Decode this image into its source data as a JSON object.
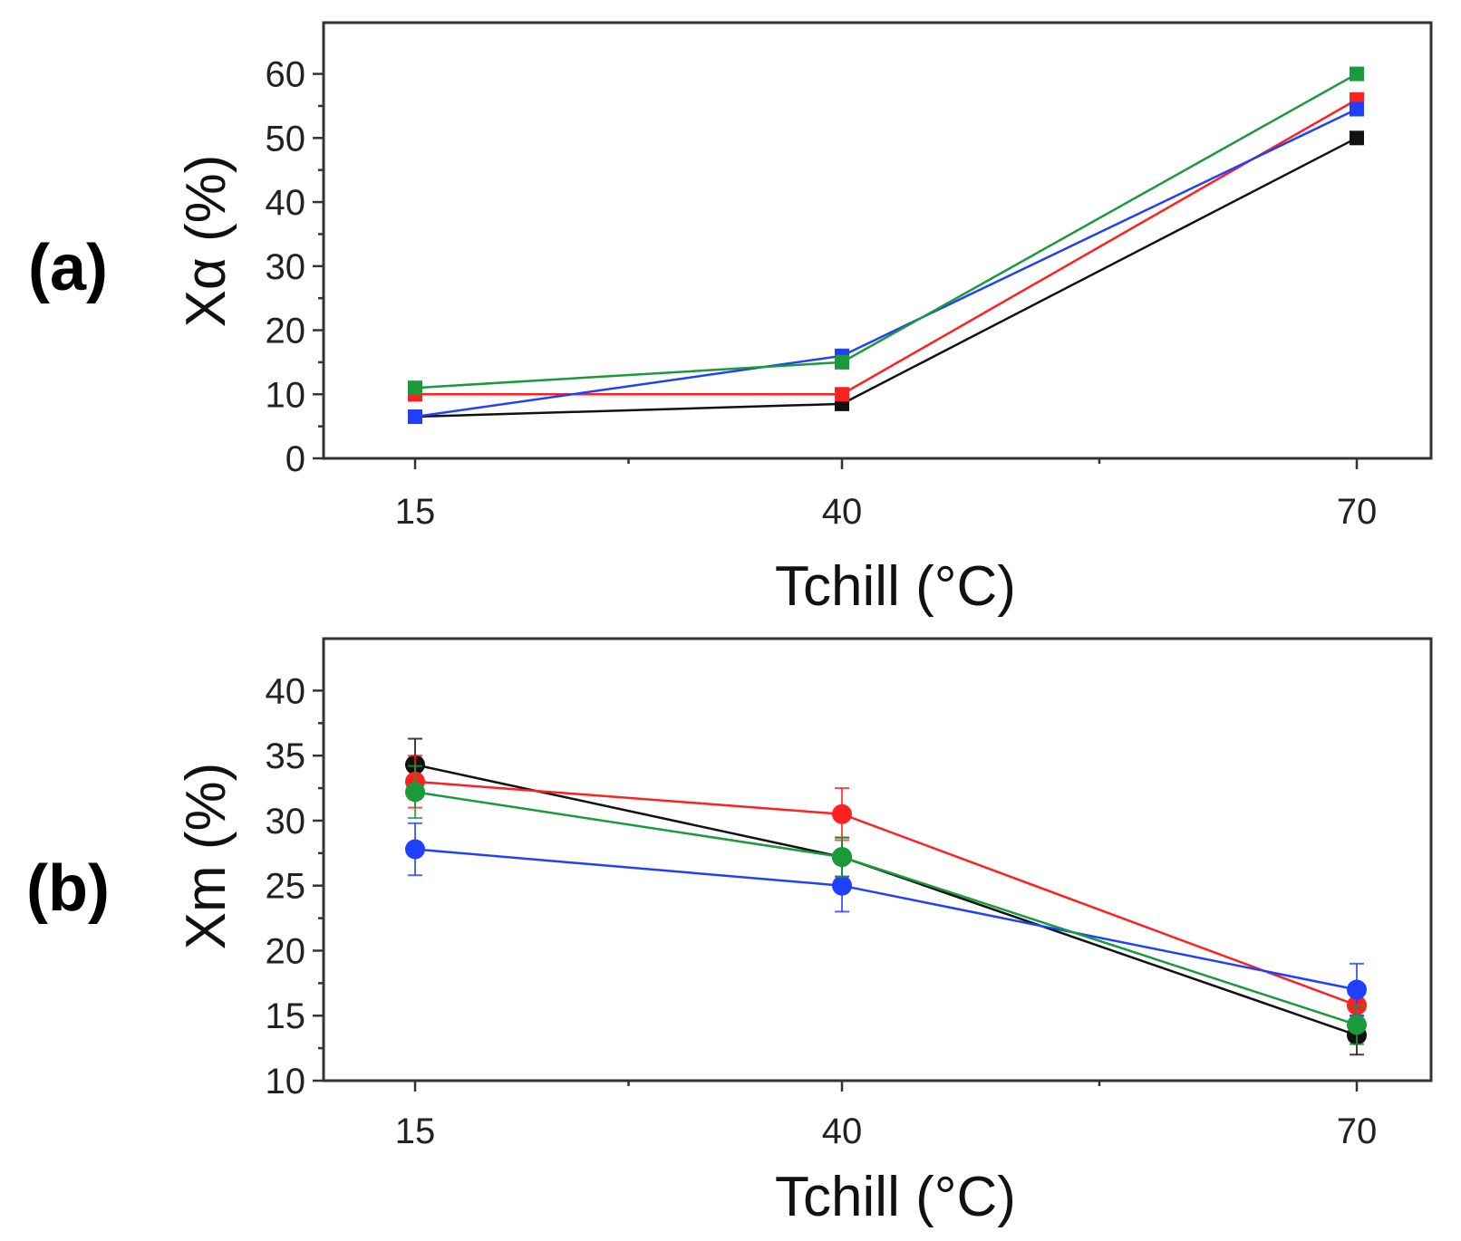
{
  "chart_data": [
    {
      "type": "line",
      "panel_label": "(a)",
      "xlabel": "Tchill (°C)",
      "ylabel": "Xα (%)",
      "x": [
        15,
        40,
        70
      ],
      "x_tick_labels": [
        "15",
        "40",
        "70"
      ],
      "ylim": [
        0,
        68
      ],
      "y_ticks": [
        0,
        10,
        20,
        30,
        40,
        50,
        60
      ],
      "y_tick_labels": [
        "0",
        "10",
        "20",
        "30",
        "40",
        "50",
        "60"
      ],
      "marker": "square",
      "series": [
        {
          "name": "black",
          "color": "#111111",
          "values": [
            6.5,
            8.5,
            50
          ]
        },
        {
          "name": "red",
          "color": "#ff2020",
          "values": [
            10,
            10,
            56
          ]
        },
        {
          "name": "blue",
          "color": "#2040ff",
          "values": [
            6.5,
            16,
            54.5
          ]
        },
        {
          "name": "green",
          "color": "#1a9a3a",
          "values": [
            11,
            15,
            60
          ]
        }
      ]
    },
    {
      "type": "line",
      "panel_label": "(b)",
      "xlabel": "Tchill (°C)",
      "ylabel": "Xm (%)",
      "x": [
        15,
        40,
        70
      ],
      "x_tick_labels": [
        "15",
        "40",
        "70"
      ],
      "ylim": [
        10,
        44
      ],
      "y_ticks": [
        10,
        15,
        20,
        25,
        30,
        35,
        40
      ],
      "y_tick_labels": [
        "10",
        "15",
        "20",
        "25",
        "30",
        "35",
        "40"
      ],
      "marker": "circle",
      "series": [
        {
          "name": "black",
          "color": "#111111",
          "values": [
            34.3,
            27.2,
            13.5
          ],
          "errors": [
            2,
            1.5,
            1.5
          ]
        },
        {
          "name": "red",
          "color": "#ff2020",
          "values": [
            33,
            30.5,
            15.8
          ],
          "errors": [
            2,
            2,
            1.5
          ]
        },
        {
          "name": "blue",
          "color": "#2040ff",
          "values": [
            27.8,
            25,
            17
          ],
          "errors": [
            2,
            2,
            2
          ]
        },
        {
          "name": "green",
          "color": "#1a9a3a",
          "values": [
            32.2,
            27.2,
            14.3
          ],
          "errors": [
            2,
            1.5,
            1.5
          ]
        }
      ]
    }
  ]
}
